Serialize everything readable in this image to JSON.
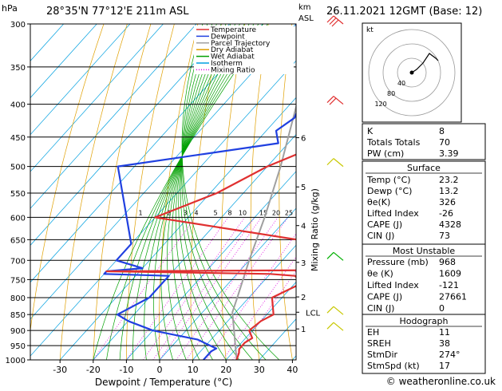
{
  "header": {
    "pressure_unit": "hPa",
    "location": "28°35'N  77°12'E  211m  ASL",
    "height_unit_line1": "km",
    "height_unit_line2": "ASL",
    "datetime": "26.11.2021  12GMT  (Base: 12)"
  },
  "chart_data": {
    "type": "skew-t",
    "xlabel": "Dewpoint / Temperature (°C)",
    "ylabel": "",
    "x_ticks": [
      -30,
      -20,
      -10,
      0,
      10,
      20,
      30,
      40
    ],
    "xlim": [
      -40,
      40
    ],
    "pressure_levels": [
      300,
      350,
      400,
      450,
      500,
      550,
      600,
      650,
      700,
      750,
      800,
      850,
      900,
      950,
      1000
    ],
    "ylim": [
      1000,
      300
    ],
    "y_scale": "log",
    "km_labels": [
      {
        "km": "6",
        "p": 451
      },
      {
        "km": "5",
        "p": 538
      },
      {
        "km": "4",
        "p": 618
      },
      {
        "km": "3",
        "p": 705
      },
      {
        "km": "2",
        "p": 798
      },
      {
        "km": "LCL",
        "p": 843
      },
      {
        "km": "1",
        "p": 895
      }
    ],
    "mixing_ratio_label": "Mixing Ratio (g/kg)",
    "mixing_ratio_values": [
      "1",
      "2",
      "3",
      "4",
      "5",
      "8",
      "10",
      "15",
      "20",
      "25"
    ],
    "legend": [
      "Temperature",
      "Dewpoint",
      "Parcel Trajectory",
      "Dry Adiabat",
      "Wet Adiabat",
      "Isotherm",
      "Mixing Ratio"
    ],
    "legend_colors": [
      "#e03030",
      "#2040e0",
      "#a0a0a0",
      "#e0a000",
      "#00a000",
      "#00a0e0",
      "#e000e0"
    ],
    "legend_styles": [
      "solid",
      "solid",
      "solid",
      "solid",
      "solid",
      "solid",
      "dotted"
    ],
    "legend_position": "top-left",
    "series": [
      {
        "name": "Temperature",
        "points": [
          [
            1000,
            23.2
          ],
          [
            975,
            22
          ],
          [
            962,
            21
          ],
          [
            940,
            21
          ],
          [
            925,
            22
          ],
          [
            900,
            19
          ],
          [
            870,
            20
          ],
          [
            850,
            22
          ],
          [
            800,
            17
          ],
          [
            760,
            22
          ],
          [
            740,
            18
          ],
          [
            735,
            10
          ],
          [
            728,
            -40
          ],
          [
            725,
            23
          ],
          [
            700,
            24
          ],
          [
            650,
            9
          ],
          [
            600,
            -40
          ],
          [
            550,
            -28
          ],
          [
            500,
            -20
          ],
          [
            455,
            -8
          ],
          [
            450,
            -11
          ],
          [
            400,
            -21
          ],
          [
            350,
            -27
          ],
          [
            300,
            -31
          ]
        ]
      },
      {
        "name": "Dewpoint",
        "points": [
          [
            1000,
            13.2
          ],
          [
            970,
            13.2
          ],
          [
            960,
            14
          ],
          [
            945,
            10
          ],
          [
            930,
            6
          ],
          [
            900,
            -10
          ],
          [
            870,
            -20
          ],
          [
            850,
            -25
          ],
          [
            800,
            -20
          ],
          [
            740,
            -20
          ],
          [
            735,
            -40
          ],
          [
            728,
            -40
          ],
          [
            720,
            -30
          ],
          [
            700,
            -40
          ],
          [
            660,
            -40
          ],
          [
            500,
            -65
          ],
          [
            460,
            -23
          ],
          [
            450,
            -25
          ],
          [
            440,
            -27
          ],
          [
            420,
            -25
          ],
          [
            400,
            -27
          ],
          [
            350,
            -36
          ],
          [
            300,
            -50
          ]
        ]
      },
      {
        "name": "Parcel Trajectory",
        "points": [
          [
            1000,
            23.2
          ],
          [
            843,
            9
          ],
          [
            800,
            6.5
          ],
          [
            700,
            0
          ],
          [
            600,
            -7
          ],
          [
            500,
            -16
          ],
          [
            400,
            -28
          ],
          [
            300,
            -43
          ]
        ]
      }
    ]
  },
  "hodograph": {
    "label": "kt",
    "ring_labels": [
      "40",
      "80",
      "120"
    ]
  },
  "indices": {
    "basic": [
      {
        "label": "K",
        "value": "8"
      },
      {
        "label": "Totals Totals",
        "value": "70"
      },
      {
        "label": "PW (cm)",
        "value": "3.39"
      }
    ],
    "surface": {
      "title": "Surface",
      "rows": [
        {
          "label": "Temp (°C)",
          "value": "23.2"
        },
        {
          "label": "Dewp (°C)",
          "value": "13.2"
        },
        {
          "label": "θe(K)",
          "value": "326"
        },
        {
          "label": "Lifted Index",
          "value": "-26"
        },
        {
          "label": "CAPE (J)",
          "value": "4328"
        },
        {
          "label": "CIN (J)",
          "value": "73"
        }
      ]
    },
    "most_unstable": {
      "title": "Most Unstable",
      "rows": [
        {
          "label": "Pressure (mb)",
          "value": "968"
        },
        {
          "label": "θe (K)",
          "value": "1609"
        },
        {
          "label": "Lifted Index",
          "value": "-121"
        },
        {
          "label": "CAPE (J)",
          "value": "27661"
        },
        {
          "label": "CIN (J)",
          "value": "0"
        }
      ]
    },
    "hodograph_table": {
      "title": "Hodograph",
      "rows": [
        {
          "label": "EH",
          "value": "11"
        },
        {
          "label": "SREH",
          "value": "38"
        },
        {
          "label": "StmDir",
          "value": "274°"
        },
        {
          "label": "StmSpd (kt)",
          "value": "17"
        }
      ]
    }
  },
  "footer": {
    "copyright": "© weatheronline.co.uk"
  }
}
